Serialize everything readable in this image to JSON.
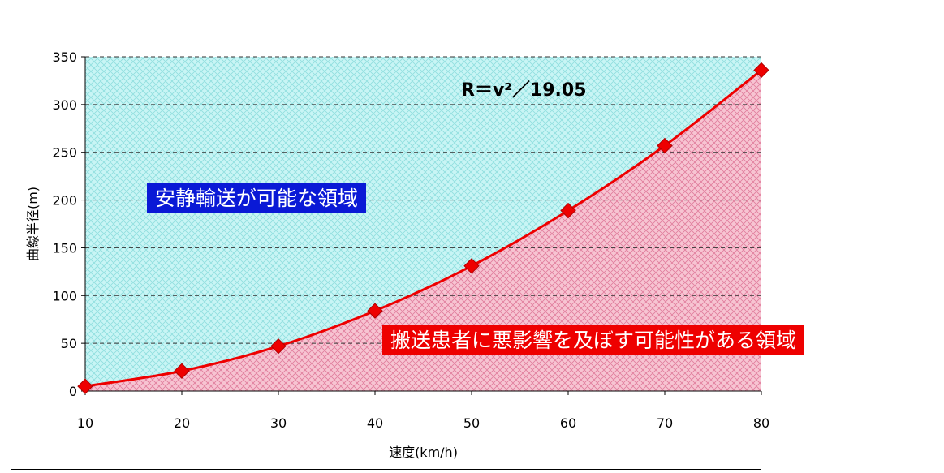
{
  "chart_data": {
    "type": "line",
    "x": [
      10,
      20,
      30,
      40,
      50,
      60,
      70,
      80
    ],
    "y": [
      5,
      21,
      47,
      84,
      131,
      189,
      257,
      336
    ],
    "xlabel": "速度(km/h)",
    "ylabel": "曲線半径(m)",
    "xlim": [
      10,
      80
    ],
    "ylim": [
      0,
      350
    ],
    "x_ticks": [
      10,
      20,
      30,
      40,
      50,
      60,
      70,
      80
    ],
    "y_ticks": [
      0,
      50,
      100,
      150,
      200,
      250,
      300,
      350
    ],
    "grid": "horizontal-dashed",
    "formula_text": "R＝v²／19.05",
    "regions": {
      "above": {
        "label": "安静輸送が可能な領域",
        "color": "#0a19d6",
        "fill": "#bff2f2"
      },
      "below": {
        "label": "搬送患者に悪影響を及ぼす可能性がある領域",
        "color": "#ee0000",
        "fill": "#f2b6c6"
      }
    },
    "line_color": "#ee0000",
    "marker": "diamond"
  }
}
